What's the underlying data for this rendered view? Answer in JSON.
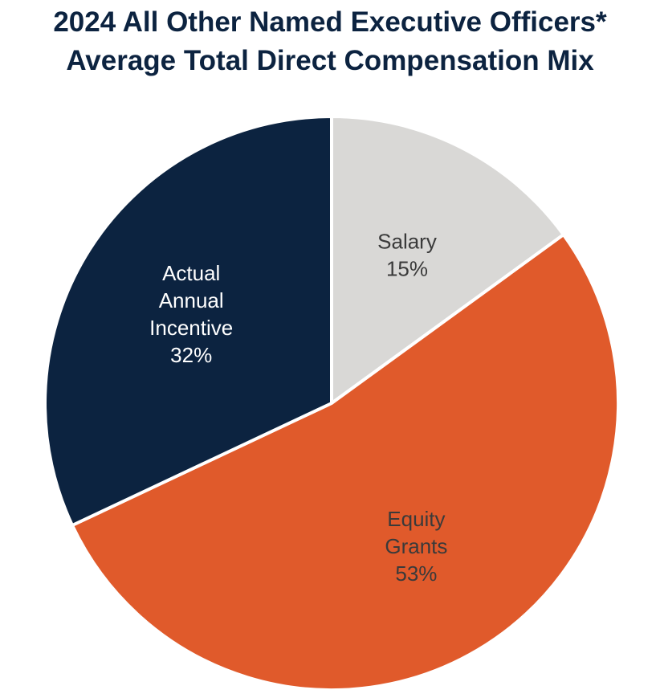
{
  "chart_data": {
    "type": "pie",
    "title": "2024 All Other Named Executive Officers*",
    "subtitle": "Average Total Direct Compensation Mix",
    "slices": [
      {
        "label_lines": [
          "Salary"
        ],
        "percent_text": "15%",
        "value": 15,
        "color": "#d9d8d6",
        "text_color": "#3a3a3a"
      },
      {
        "label_lines": [
          "Equity",
          "Grants"
        ],
        "percent_text": "53%",
        "value": 53,
        "color": "#e05a2b",
        "text_color": "#3a3a3a"
      },
      {
        "label_lines": [
          "Actual",
          "Annual",
          "Incentive"
        ],
        "percent_text": "32%",
        "value": 32,
        "color": "#0c2340",
        "text_color": "#ffffff"
      }
    ],
    "start": "12 o'clock",
    "direction": "clockwise",
    "legend": "none"
  },
  "colors": {
    "title": "#0c2340",
    "slice_border": "#ffffff"
  }
}
